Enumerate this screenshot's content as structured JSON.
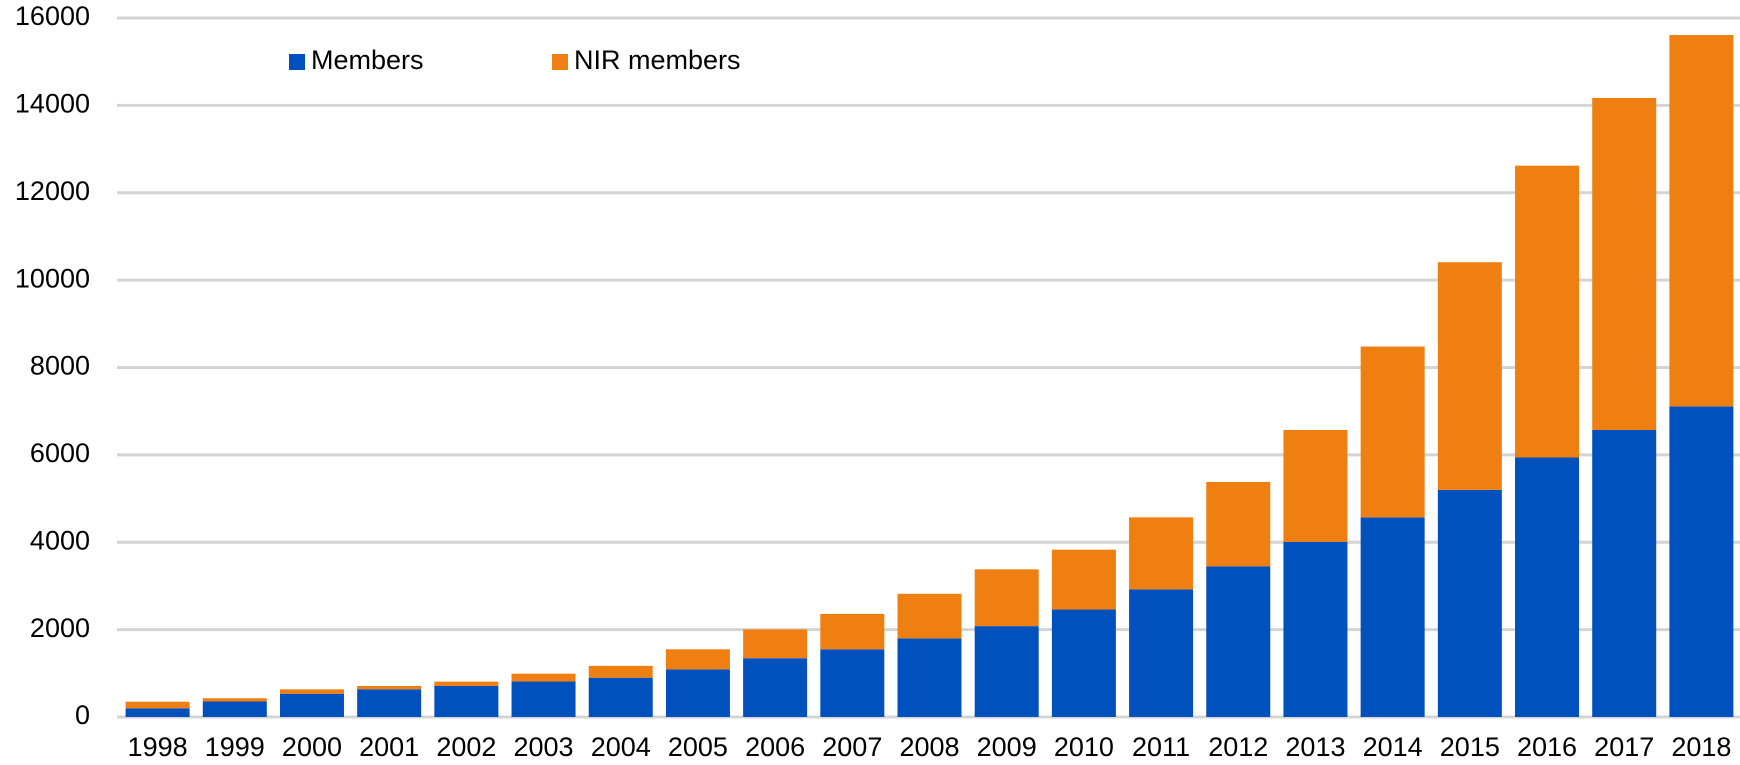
{
  "chart_data": {
    "type": "bar",
    "stacked": true,
    "categories": [
      "1998",
      "1999",
      "2000",
      "2001",
      "2002",
      "2003",
      "2004",
      "2005",
      "2006",
      "2007",
      "2008",
      "2009",
      "2010",
      "2011",
      "2012",
      "2013",
      "2014",
      "2015",
      "2016",
      "2017",
      "2018"
    ],
    "series": [
      {
        "name": "Members",
        "color": "#0050be",
        "values": [
          200,
          355,
          533,
          635,
          710,
          812,
          900,
          1090,
          1345,
          1550,
          1800,
          2080,
          2460,
          2920,
          3450,
          4010,
          4570,
          5200,
          5940,
          6570,
          7110
        ]
      },
      {
        "name": "NIR members",
        "color": "#f07f11",
        "values": [
          150,
          75,
          100,
          75,
          100,
          180,
          270,
          460,
          660,
          810,
          1020,
          1300,
          1370,
          1650,
          1930,
          2560,
          3910,
          5210,
          6680,
          7600,
          8500
        ]
      }
    ],
    "ylim": [
      0,
      16000
    ],
    "yticks": [
      0,
      2000,
      4000,
      6000,
      8000,
      10000,
      12000,
      14000,
      16000
    ],
    "grid": true,
    "legend": "top-left"
  }
}
